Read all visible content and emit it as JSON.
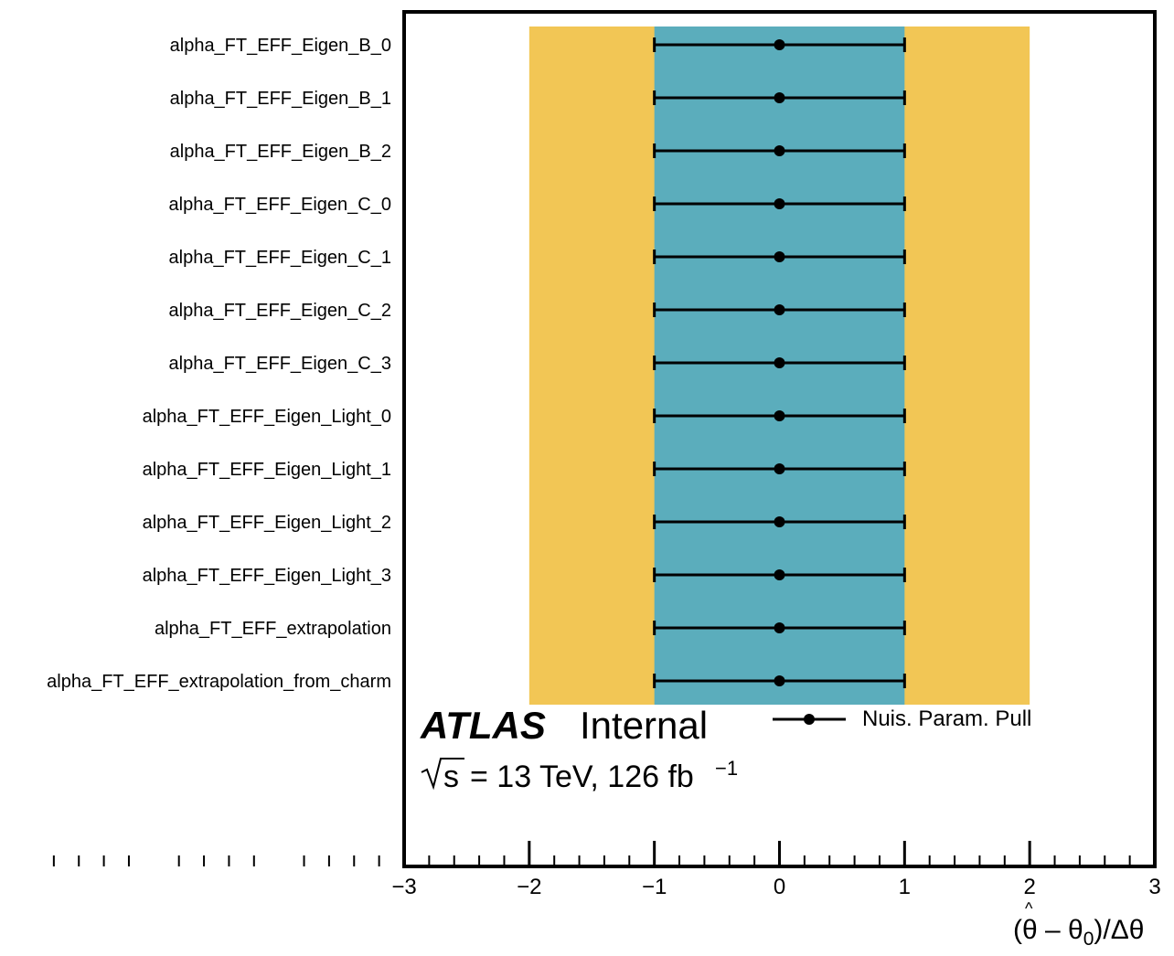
{
  "colors": {
    "band_2sigma": "#f2c655",
    "band_1sigma": "#5badbc",
    "marker": "#000000",
    "frame": "#000000"
  },
  "labels": {
    "atlas": "ATLAS",
    "internal": "Internal",
    "energy": "= 13 TeV, 126 fb",
    "energy_sqrt_var": "s",
    "lumi_exp": "−1"
  },
  "chart_data": {
    "type": "scatter",
    "title": "",
    "xlabel": "(θ̂ – θ₀)/Δθ",
    "xlim": [
      -3,
      3
    ],
    "x_ticks": [
      -3,
      -2,
      -1,
      0,
      1,
      2,
      3
    ],
    "x_tick_labels": [
      "−3",
      "−2",
      "−1",
      "0",
      "1",
      "2",
      "3"
    ],
    "grid": false,
    "legend": {
      "entries": [
        "Nuis. Param. Pull"
      ],
      "placement": "top-right, below bands"
    },
    "bands": [
      {
        "name": "±2σ",
        "range": [
          -2,
          2
        ],
        "color": "#f2c655"
      },
      {
        "name": "±1σ",
        "range": [
          -1,
          1
        ],
        "color": "#5badbc"
      }
    ],
    "categories": [
      "alpha_FT_EFF_Eigen_B_0",
      "alpha_FT_EFF_Eigen_B_1",
      "alpha_FT_EFF_Eigen_B_2",
      "alpha_FT_EFF_Eigen_C_0",
      "alpha_FT_EFF_Eigen_C_1",
      "alpha_FT_EFF_Eigen_C_2",
      "alpha_FT_EFF_Eigen_C_3",
      "alpha_FT_EFF_Eigen_Light_0",
      "alpha_FT_EFF_Eigen_Light_1",
      "alpha_FT_EFF_Eigen_Light_2",
      "alpha_FT_EFF_Eigen_Light_3",
      "alpha_FT_EFF_extrapolation",
      "alpha_FT_EFF_extrapolation_from_charm"
    ],
    "series": [
      {
        "name": "Nuis. Param. Pull",
        "values": [
          0,
          0,
          0,
          0,
          0,
          0,
          0,
          0,
          0,
          0,
          0,
          0,
          0
        ],
        "err_low": [
          1,
          1,
          1,
          1,
          1,
          1,
          1,
          1,
          1,
          1,
          1,
          1,
          1
        ],
        "err_high": [
          1,
          1,
          1,
          1,
          1,
          1,
          1,
          1,
          1,
          1,
          1,
          1,
          1
        ]
      }
    ]
  }
}
